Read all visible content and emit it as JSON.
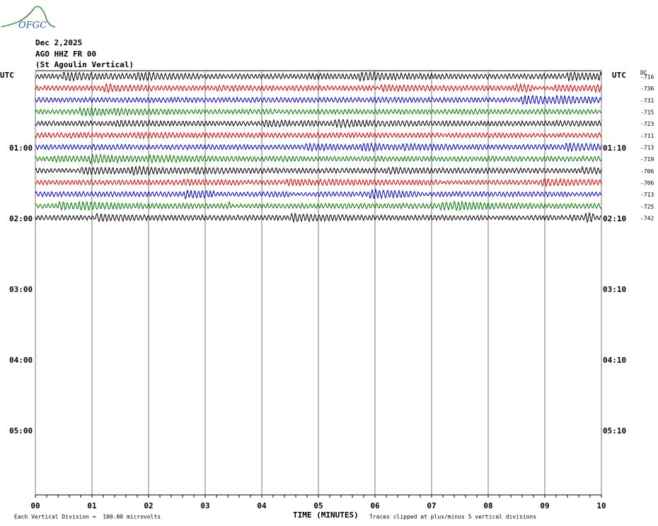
{
  "logo": "OFGC",
  "header": {
    "date": "Dec 2,2025",
    "station": "AGO HHZ FR 00",
    "location": "(St Agoulin Vertical)"
  },
  "left_labels": [
    "UTC",
    "01:00",
    "02:00",
    "03:00",
    "04:00",
    "05:00"
  ],
  "right_labels": [
    "UTC",
    "01:10",
    "02:10",
    "03:10",
    "04:10",
    "05:10"
  ],
  "dc_header": "DC",
  "dc_offsets": [
    "-716",
    "-736",
    "-731",
    "-715",
    "-723",
    "-711",
    "-713",
    "-719",
    "-706",
    "-706",
    "-713",
    "-725",
    "-742"
  ],
  "time_axis": {
    "ticks": [
      "00",
      "01",
      "02",
      "03",
      "04",
      "05",
      "06",
      "07",
      "08",
      "09",
      "10"
    ],
    "label": "TIME (MINUTES)"
  },
  "footer": {
    "scale": "Each Vertical Division =  100.00 microvolts",
    "clip": "Traces clipped at plus/minus 5 vertical divisions"
  }
}
